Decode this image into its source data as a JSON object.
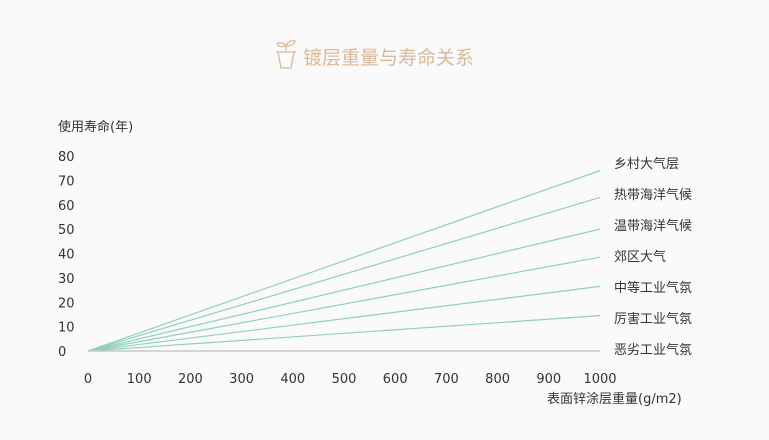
{
  "chart_data": {
    "type": "line",
    "title": "镀层重量与寿命关系",
    "title_icon": "plant-pot-icon",
    "xlabel": "表面锌涂层重量(g/m2)",
    "ylabel": "使用寿命(年)",
    "xlim": [
      0,
      1000
    ],
    "ylim": [
      0,
      80
    ],
    "xticks": [
      "0",
      "100",
      "200",
      "300",
      "400",
      "500",
      "600",
      "700",
      "800",
      "900",
      "1000"
    ],
    "yticks": [
      "0",
      "10",
      "20",
      "30",
      "40",
      "50",
      "60",
      "70",
      "80"
    ],
    "grid": false,
    "legend": "right-end labels",
    "colors": {
      "line": "#8fd0bd",
      "baseline": "#c8c8c8",
      "title": "#d9b99a",
      "text": "#333333"
    },
    "series": [
      {
        "name": "乡村大气层",
        "x": [
          0,
          1000
        ],
        "y": [
          0,
          74
        ]
      },
      {
        "name": "热带海洋气候",
        "x": [
          0,
          1000
        ],
        "y": [
          0,
          63
        ]
      },
      {
        "name": "温带海洋气候",
        "x": [
          0,
          1000
        ],
        "y": [
          0,
          50
        ]
      },
      {
        "name": "郊区大气",
        "x": [
          0,
          1000
        ],
        "y": [
          0,
          38.5
        ]
      },
      {
        "name": "中等工业气氛",
        "x": [
          0,
          1000
        ],
        "y": [
          0,
          26.5
        ]
      },
      {
        "name": "厉害工业气氛",
        "x": [
          0,
          1000
        ],
        "y": [
          0,
          14.5
        ]
      },
      {
        "name": "恶劣工业气氛",
        "x": [
          0,
          1000
        ],
        "y": [
          0,
          0
        ]
      }
    ]
  }
}
